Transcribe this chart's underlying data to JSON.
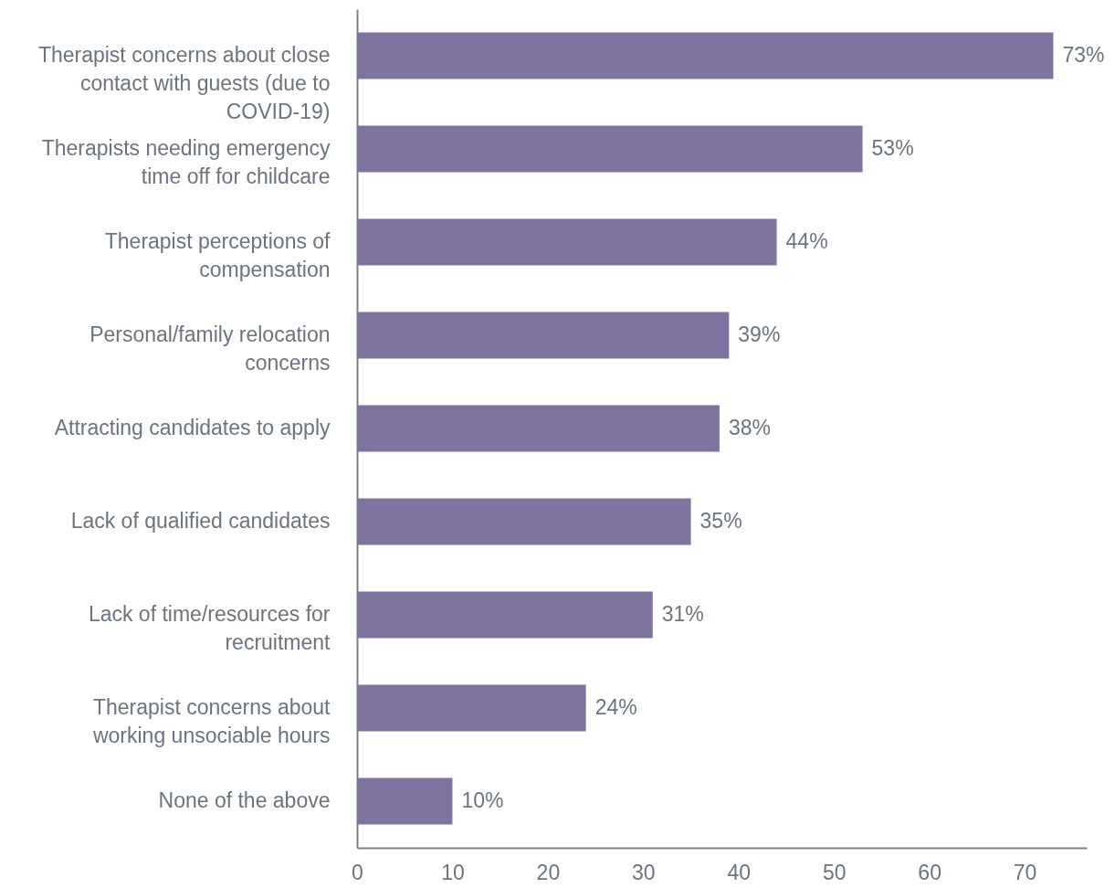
{
  "chart_data": {
    "type": "bar",
    "orientation": "horizontal",
    "categories": [
      "Therapist concerns about close contact with guests (due to COVID-19)",
      "Therapists needing emergency time off for childcare",
      "Therapist perceptions of compensation",
      "Personal/family relocation concerns",
      "Attracting candidates to apply",
      "Lack of qualified candidates",
      "Lack of time/resources for recruitment",
      "Therapist concerns about working unsociable hours",
      "None of the above"
    ],
    "values": [
      73,
      53,
      44,
      39,
      38,
      35,
      31,
      24,
      10
    ],
    "value_labels": [
      "73%",
      "53%",
      "44%",
      "39%",
      "38%",
      "35%",
      "31%",
      "24%",
      "10%"
    ],
    "color": "#7f74a0",
    "xlim": [
      0,
      76.5
    ],
    "xticks": [
      0,
      10,
      20,
      30,
      40,
      50,
      60,
      70
    ]
  }
}
